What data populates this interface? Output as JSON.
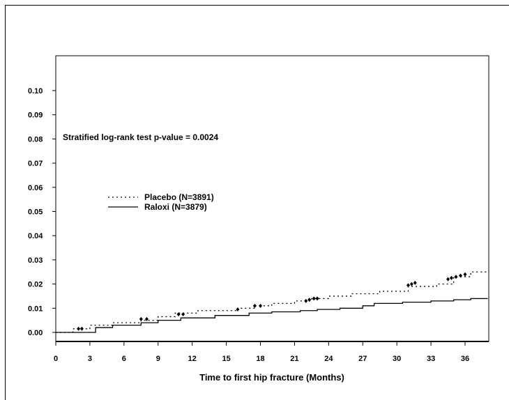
{
  "chart_data": {
    "type": "line",
    "xlabel": "Time to first hip fracture (Months)",
    "ylabel": "",
    "xlim": [
      0,
      38
    ],
    "ylim": [
      0,
      0.11
    ],
    "xticks": [
      0,
      3,
      6,
      9,
      12,
      15,
      18,
      21,
      24,
      27,
      30,
      33,
      36
    ],
    "xtick_labels": [
      "0",
      "3",
      "6",
      "9",
      "12",
      "15",
      "18",
      "21",
      "24",
      "27",
      "30",
      "33",
      "36"
    ],
    "yticks": [
      0,
      0.01,
      0.02,
      0.03,
      0.04,
      0.05,
      0.06,
      0.07,
      0.08,
      0.09,
      0.1
    ],
    "ytick_labels": [
      "0.00",
      "0.01",
      "0.02",
      "0.03",
      "0.04",
      "0.05",
      "0.06",
      "0.07",
      "0.08",
      "0.09",
      "0.10"
    ],
    "annotation": "Stratified log-rank test p-value = 0.0024",
    "legend_position": "center-left",
    "grid": false,
    "series": [
      {
        "name": "Placebo (N=3891)",
        "style": "dotted",
        "color": "#000000",
        "x": [
          0,
          1.5,
          3,
          5,
          7.5,
          9,
          10.5,
          12.5,
          16,
          17.5,
          19,
          21,
          22.5,
          24,
          26,
          28.5,
          31,
          33.5,
          35,
          36.5,
          38
        ],
        "y": [
          0,
          0.0015,
          0.003,
          0.004,
          0.005,
          0.0065,
          0.008,
          0.009,
          0.01,
          0.011,
          0.012,
          0.013,
          0.014,
          0.015,
          0.016,
          0.017,
          0.019,
          0.02,
          0.023,
          0.025,
          0.025
        ],
        "markers": {
          "x": [
            2,
            2.3,
            7.5,
            8,
            10.8,
            11.2,
            16,
            17.5,
            18,
            22,
            22.3,
            22.7,
            23,
            31,
            31.3,
            31.6,
            34.5,
            34.8,
            35.2,
            35.6,
            36
          ],
          "y": [
            0.0015,
            0.0015,
            0.0055,
            0.0055,
            0.0075,
            0.0075,
            0.0095,
            0.011,
            0.011,
            0.013,
            0.0135,
            0.014,
            0.014,
            0.0195,
            0.02,
            0.0205,
            0.022,
            0.0225,
            0.023,
            0.0235,
            0.024
          ]
        }
      },
      {
        "name": "Raloxi (N=3879)",
        "style": "solid",
        "color": "#000000",
        "x": [
          0,
          3.5,
          5,
          7.5,
          9,
          11,
          14,
          17,
          19,
          21.5,
          23,
          25,
          27,
          28,
          30.5,
          33,
          35,
          36.5,
          38
        ],
        "y": [
          0,
          0.002,
          0.003,
          0.004,
          0.005,
          0.006,
          0.007,
          0.008,
          0.0085,
          0.009,
          0.0095,
          0.01,
          0.011,
          0.012,
          0.0125,
          0.013,
          0.0135,
          0.014,
          0.014
        ]
      }
    ]
  }
}
